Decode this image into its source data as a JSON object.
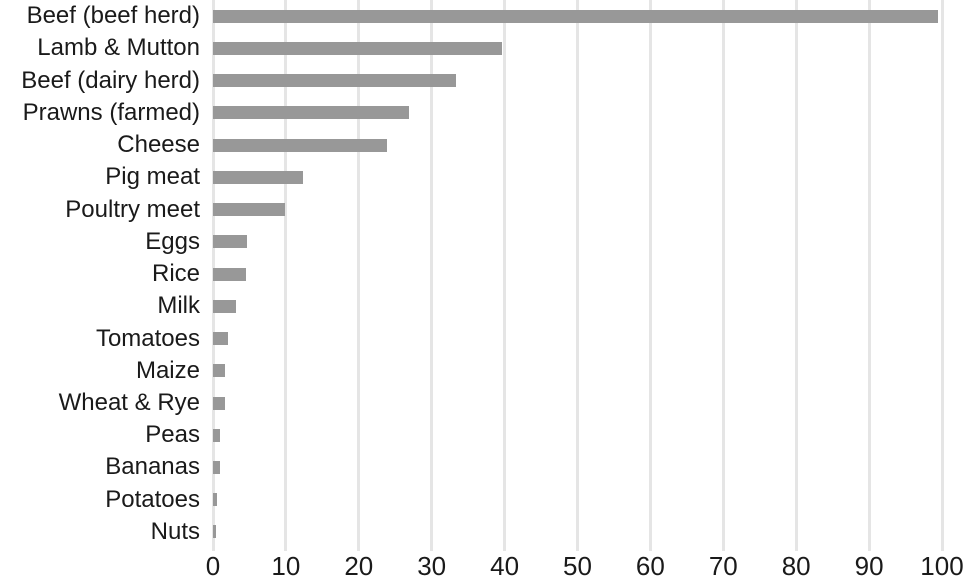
{
  "chart_data": {
    "type": "bar",
    "orientation": "horizontal",
    "title": "",
    "xlabel": "",
    "ylabel": "",
    "categories": [
      "Beef (beef herd)",
      "Lamb & Mutton",
      "Beef (dairy herd)",
      "Prawns (farmed)",
      "Cheese",
      "Pig meat",
      "Poultry meet",
      "Eggs",
      "Rice",
      "Milk",
      "Tomatoes",
      "Maize",
      "Wheat & Rye",
      "Peas",
      "Bananas",
      "Potatoes",
      "Nuts"
    ],
    "values": [
      99.5,
      39.7,
      33.3,
      26.9,
      23.9,
      12.3,
      9.9,
      4.7,
      4.5,
      3.2,
      2.1,
      1.7,
      1.6,
      1.0,
      0.9,
      0.5,
      0.4
    ],
    "xlim": [
      0,
      100
    ],
    "xticks": [
      0,
      10,
      20,
      30,
      40,
      50,
      60,
      70,
      80,
      90,
      100
    ],
    "grid": "vertical-gridlines-only",
    "legend": false,
    "colors": {
      "bar": "#989898",
      "gridline": "#e5e5e5",
      "text": "#1a1a1a",
      "background": "#ffffff"
    }
  }
}
